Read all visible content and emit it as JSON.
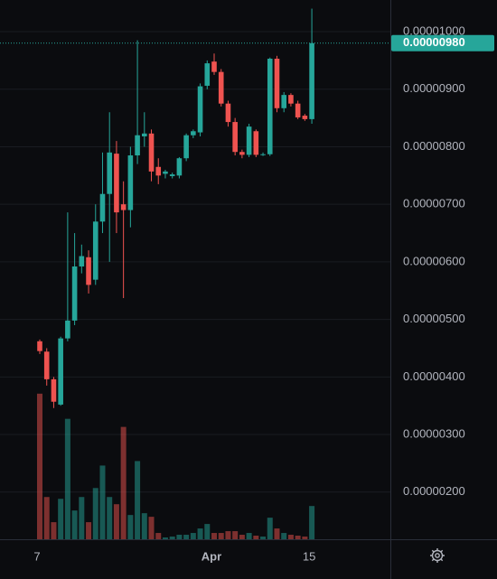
{
  "chart_data": {
    "type": "candlestick",
    "categories": [
      "7",
      null,
      null,
      null,
      null,
      null,
      null,
      null,
      null,
      null,
      null,
      null,
      null,
      null,
      null,
      null,
      null,
      null,
      null,
      null,
      null,
      null,
      null,
      null,
      null,
      "Apr",
      null,
      null,
      null,
      null,
      null,
      null,
      null,
      null,
      null,
      null,
      null,
      null,
      null,
      "15"
    ],
    "open": [
      4.62e-06,
      4.44e-06,
      3.96e-06,
      3.52e-06,
      4.67e-06,
      4.98e-06,
      5.92e-06,
      6.08e-06,
      5.69e-06,
      6.7e-06,
      7.18e-06,
      7.88e-06,
      7e-06,
      6.9e-06,
      7.85e-06,
      8.18e-06,
      8.23e-06,
      7.65e-06,
      7.53e-06,
      7.49e-06,
      7.5e-06,
      7.8e-06,
      8.2e-06,
      8.25e-06,
      9.06e-06,
      9.48e-06,
      9.3e-06,
      8.75e-06,
      8.43e-06,
      7.91e-06,
      7.86e-06,
      8.27e-06,
      7.86e-06,
      7.87e-06,
      9.53e-06,
      8.67e-06,
      8.9e-06,
      8.75e-06,
      8.54e-06,
      8.48e-06
    ],
    "high": [
      4.65e-06,
      4.5e-06,
      4e-06,
      4.7e-06,
      6.86e-06,
      6.5e-06,
      6.3e-06,
      6.2e-06,
      7e-06,
      7.9e-06,
      8.6e-06,
      8.1e-06,
      7.4e-06,
      8e-06,
      9.85e-06,
      8.6e-06,
      8.3e-06,
      7.8e-06,
      7.6e-06,
      7.55e-06,
      7.82e-06,
      8.23e-06,
      8.3e-06,
      9.1e-06,
      9.5e-06,
      9.62e-06,
      9.35e-06,
      8.8e-06,
      8.5e-06,
      7.95e-06,
      8.4e-06,
      8.3e-06,
      7.9e-06,
      9.55e-06,
      9.58e-06,
      8.95e-06,
      8.93e-06,
      8.8e-06,
      8.57e-06,
      1.04e-05
    ],
    "low": [
      4.4e-06,
      3.85e-06,
      3.46e-06,
      3.5e-06,
      4.62e-06,
      4.9e-06,
      5.8e-06,
      5.45e-06,
      5.6e-06,
      6.5e-06,
      6e-06,
      6.5e-06,
      5.37e-06,
      6.6e-06,
      7.7e-06,
      8e-06,
      7.4e-06,
      7.35e-06,
      7.45e-06,
      7.45e-06,
      7.45e-06,
      7.75e-06,
      8.15e-06,
      8.18e-06,
      9e-06,
      9.25e-06,
      8.7e-06,
      8.35e-06,
      7.85e-06,
      7.8e-06,
      7.82e-06,
      7.82e-06,
      7.84e-06,
      7.84e-06,
      8.6e-06,
      8.6e-06,
      8.7e-06,
      8.48e-06,
      8.45e-06,
      8.4e-06
    ],
    "close": [
      4.45e-06,
      3.96e-06,
      3.57e-06,
      4.67e-06,
      4.98e-06,
      5.92e-06,
      6.1e-06,
      5.6e-06,
      6.7e-06,
      7.18e-06,
      7.9e-06,
      6.86e-06,
      6.9e-06,
      7.85e-06,
      8.2e-06,
      8.23e-06,
      7.57e-06,
      7.5e-06,
      7.57e-06,
      7.52e-06,
      7.8e-06,
      8.2e-06,
      8.27e-06,
      9.05e-06,
      9.45e-06,
      9.3e-06,
      8.75e-06,
      8.43e-06,
      7.91e-06,
      7.86e-06,
      8.35e-06,
      7.86e-06,
      7.87e-06,
      9.53e-06,
      8.67e-06,
      8.9e-06,
      8.75e-06,
      8.51e-06,
      8.48e-06,
      9.8e-06
    ],
    "volume": [
      162,
      47,
      19,
      45,
      134,
      32,
      47,
      19,
      57,
      82,
      47,
      39,
      125,
      27,
      87,
      29,
      25,
      7,
      2,
      3,
      5,
      5,
      7,
      12,
      17,
      7,
      7,
      9,
      9,
      5,
      7,
      4,
      3,
      24,
      12,
      7,
      5,
      4,
      3,
      37
    ],
    "vlim": [
      0,
      600
    ],
    "up_color": "#26a69a",
    "down_color": "#ef5350",
    "ylim": [
      1.18e-06,
      1.055e-05
    ],
    "yticks": [
      {
        "value": 2e-06,
        "label": "0.00000200"
      },
      {
        "value": 3e-06,
        "label": "0.00000300"
      },
      {
        "value": 4e-06,
        "label": "0.00000400"
      },
      {
        "value": 5e-06,
        "label": "0.00000500"
      },
      {
        "value": 6e-06,
        "label": "0.00000600"
      },
      {
        "value": 7e-06,
        "label": "0.00000700"
      },
      {
        "value": 8e-06,
        "label": "0.00000800"
      },
      {
        "value": 9e-06,
        "label": "0.00000900"
      },
      {
        "value": 1e-05,
        "label": "0.00001000"
      }
    ],
    "last_price": {
      "value": 9.8e-06,
      "label": "0.00000980"
    },
    "grid": true
  }
}
